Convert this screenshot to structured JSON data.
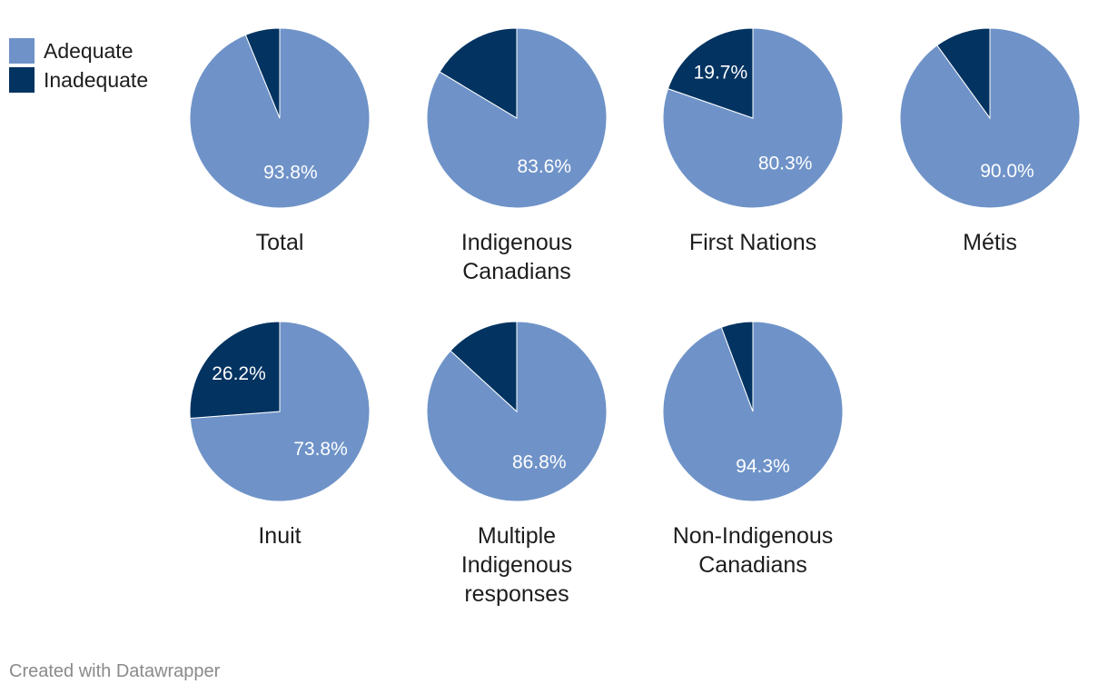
{
  "chart_data": {
    "type": "pie",
    "legend": [
      {
        "label": "Adequate",
        "color": "#6f93c8"
      },
      {
        "label": "Inadequate",
        "color": "#023361"
      }
    ],
    "charts": [
      {
        "label": [
          "Total"
        ],
        "adequate": 93.8,
        "inadequate": 6.2,
        "adequate_label": "93.8%",
        "inadequate_label": ""
      },
      {
        "label": [
          "Indigenous",
          "Canadians"
        ],
        "adequate": 83.6,
        "inadequate": 16.4,
        "adequate_label": "83.6%",
        "inadequate_label": ""
      },
      {
        "label": [
          "First Nations"
        ],
        "adequate": 80.3,
        "inadequate": 19.7,
        "adequate_label": "80.3%",
        "inadequate_label": "19.7%"
      },
      {
        "label": [
          "Métis"
        ],
        "adequate": 90.0,
        "inadequate": 10.0,
        "adequate_label": "90.0%",
        "inadequate_label": ""
      },
      {
        "label": [
          "Inuit"
        ],
        "adequate": 73.8,
        "inadequate": 26.2,
        "adequate_label": "73.8%",
        "inadequate_label": "26.2%"
      },
      {
        "label": [
          "Multiple",
          "Indigenous",
          "responses"
        ],
        "adequate": 86.8,
        "inadequate": 13.2,
        "adequate_label": "86.8%",
        "inadequate_label": ""
      },
      {
        "label": [
          "Non-Indigenous",
          "Canadians"
        ],
        "adequate": 94.3,
        "inadequate": 5.7,
        "adequate_label": "94.3%",
        "inadequate_label": ""
      }
    ]
  },
  "footer": {
    "credit": "Created with Datawrapper"
  }
}
